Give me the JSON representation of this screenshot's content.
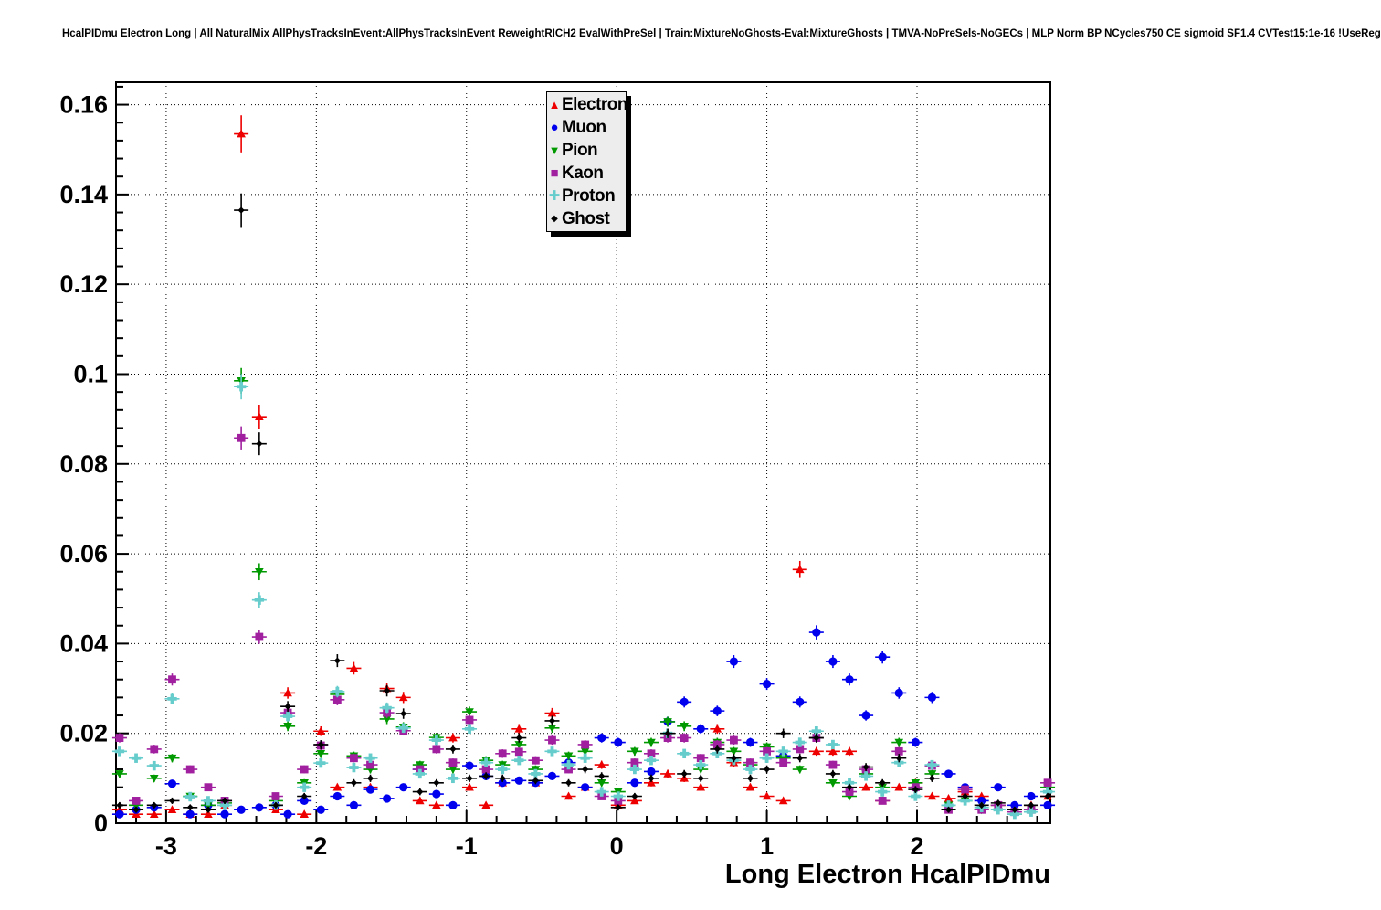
{
  "header": {
    "title": "HcalPIDmu Electron Long | All NaturalMix AllPhysTracksInEvent:AllPhysTracksInEvent ReweightRICH2 EvalWithPreSel | Train:MixtureNoGhosts-Eval:MixtureGhosts | TMVA-NoPreSels-NoGECs | MLP Norm BP NCycles750 CE sigmoid SF1.4 CVTest15:1e-16 !UseReg"
  },
  "chart_data": {
    "type": "scatter",
    "title": "HcalPIDmu Electron Long | All NaturalMix AllPhysTracksInEvent:AllPhysTracksInEvent ReweightRICH2 EvalWithPreSel | Train:MixtureNoGhosts-Eval:MixtureGhosts | TMVA-NoPreSels-NoGECs | MLP Norm BP NCycles750 CE sigmoid SF1.4 CVTest15:1e-16 !UseReg",
    "xlabel": "Long Electron HcalPIDmu",
    "ylabel": "",
    "xlim": [
      -3.334,
      2.888
    ],
    "ylim": [
      0,
      0.165
    ],
    "grid": true,
    "grid_style": "dotted",
    "legend_position": "top-center",
    "x_ticks": [
      {
        "v": -3,
        "label": "-3"
      },
      {
        "v": -2,
        "label": "-2"
      },
      {
        "v": -1,
        "label": "-1"
      },
      {
        "v": 0,
        "label": "0"
      },
      {
        "v": 1,
        "label": "1"
      },
      {
        "v": 2,
        "label": "2"
      }
    ],
    "y_ticks": [
      {
        "v": 0,
        "label": "0"
      },
      {
        "v": 0.02,
        "label": "0.02"
      },
      {
        "v": 0.04,
        "label": "0.04"
      },
      {
        "v": 0.06,
        "label": "0.06"
      },
      {
        "v": 0.08,
        "label": "0.08"
      },
      {
        "v": 0.1,
        "label": "0.1"
      },
      {
        "v": 0.12,
        "label": "0.12"
      },
      {
        "v": 0.14,
        "label": "0.14"
      },
      {
        "v": 0.16,
        "label": "0.16"
      }
    ],
    "x_minor_step": 0.2,
    "y_minor_step": 0.004,
    "x": [
      -3.31,
      -3.2,
      -3.08,
      -2.96,
      -2.84,
      -2.72,
      -2.61,
      -2.5,
      -2.38,
      -2.27,
      -2.19,
      -2.08,
      -1.97,
      -1.86,
      -1.75,
      -1.64,
      -1.53,
      -1.42,
      -1.31,
      -1.2,
      -1.09,
      -0.98,
      -0.87,
      -0.76,
      -0.65,
      -0.54,
      -0.43,
      -0.32,
      -0.21,
      -0.1,
      0.01,
      0.12,
      0.23,
      0.34,
      0.45,
      0.56,
      0.67,
      0.78,
      0.89,
      1.0,
      1.11,
      1.22,
      1.33,
      1.44,
      1.55,
      1.66,
      1.77,
      1.88,
      1.99,
      2.1,
      2.21,
      2.32,
      2.43,
      2.54,
      2.65,
      2.76,
      2.87
    ],
    "series": [
      {
        "name": "Electron",
        "color": "#ee0000",
        "marker": "triangle-up",
        "values": [
          0.003,
          0.002,
          0.002,
          0.003,
          0.002,
          0.002,
          0.004,
          0.1535,
          0.0905,
          0.003,
          0.029,
          0.002,
          0.0205,
          0.008,
          0.0345,
          0.008,
          0.03,
          0.028,
          0.005,
          0.004,
          0.019,
          0.008,
          0.004,
          0.009,
          0.021,
          0.009,
          0.0245,
          0.006,
          0.008,
          0.013,
          0.004,
          0.005,
          0.009,
          0.011,
          0.01,
          0.008,
          0.021,
          0.0135,
          0.008,
          0.006,
          0.005,
          0.0565,
          0.016,
          0.016,
          0.016,
          0.008,
          0.005,
          0.008,
          0.009,
          0.006,
          0.0055,
          0.007,
          0.006,
          0.004,
          0.003,
          0.004,
          0.006
        ]
      },
      {
        "name": "Muon",
        "color": "#0000ee",
        "marker": "circle",
        "values": [
          0.002,
          0.003,
          0.0035,
          0.0088,
          0.002,
          0.004,
          0.002,
          0.003,
          0.0035,
          0.004,
          0.002,
          0.005,
          0.003,
          0.006,
          0.004,
          0.0075,
          0.0055,
          0.008,
          0.012,
          0.0065,
          0.004,
          0.0128,
          0.0105,
          0.009,
          0.0095,
          0.009,
          0.0105,
          0.0135,
          0.008,
          0.019,
          0.018,
          0.009,
          0.0115,
          0.0226,
          0.027,
          0.021,
          0.025,
          0.036,
          0.018,
          0.031,
          0.015,
          0.027,
          0.0425,
          0.036,
          0.032,
          0.024,
          0.037,
          0.029,
          0.018,
          0.028,
          0.011,
          0.008,
          0.005,
          0.008,
          0.004,
          0.006,
          0.004
        ]
      },
      {
        "name": "Pion",
        "color": "#009900",
        "marker": "triangle-down",
        "values": [
          0.011,
          0.004,
          0.01,
          0.0145,
          0.006,
          0.004,
          0.0045,
          0.0985,
          0.056,
          0.005,
          0.0216,
          0.009,
          0.0155,
          0.0287,
          0.015,
          0.012,
          0.0232,
          0.0214,
          0.013,
          0.0191,
          0.012,
          0.0248,
          0.014,
          0.013,
          0.0175,
          0.012,
          0.0212,
          0.015,
          0.016,
          0.009,
          0.007,
          0.016,
          0.018,
          0.0226,
          0.0216,
          0.012,
          0.018,
          0.016,
          0.013,
          0.017,
          0.0145,
          0.012,
          0.019,
          0.009,
          0.006,
          0.011,
          0.008,
          0.018,
          0.009,
          0.011,
          0.004,
          0.005,
          0.003,
          0.004,
          0.002,
          0.003,
          0.008
        ]
      },
      {
        "name": "Kaon",
        "color": "#a020a0",
        "marker": "square",
        "values": [
          0.019,
          0.005,
          0.0165,
          0.032,
          0.012,
          0.008,
          0.005,
          0.0858,
          0.0415,
          0.006,
          0.0246,
          0.012,
          0.0173,
          0.0275,
          0.0145,
          0.013,
          0.0246,
          0.0206,
          0.012,
          0.0165,
          0.0135,
          0.023,
          0.012,
          0.0155,
          0.0159,
          0.014,
          0.0185,
          0.012,
          0.0175,
          0.006,
          0.005,
          0.0135,
          0.0155,
          0.019,
          0.019,
          0.0145,
          0.0175,
          0.0185,
          0.0135,
          0.016,
          0.0135,
          0.0165,
          0.019,
          0.013,
          0.007,
          0.012,
          0.005,
          0.016,
          0.008,
          0.0128,
          0.003,
          0.0075,
          0.003,
          0.004,
          0.0025,
          0.003,
          0.009
        ]
      },
      {
        "name": "Proton",
        "color": "#66cccc",
        "marker": "plus",
        "values": [
          0.016,
          0.0145,
          0.0128,
          0.0277,
          0.0059,
          0.005,
          0.004,
          0.0972,
          0.0497,
          0.004,
          0.0238,
          0.008,
          0.0134,
          0.0293,
          0.0124,
          0.0145,
          0.0257,
          0.0212,
          0.011,
          0.0185,
          0.01,
          0.021,
          0.0135,
          0.012,
          0.014,
          0.011,
          0.016,
          0.013,
          0.0145,
          0.007,
          0.006,
          0.012,
          0.014,
          0.02,
          0.0155,
          0.013,
          0.0155,
          0.014,
          0.012,
          0.0145,
          0.016,
          0.018,
          0.0205,
          0.0175,
          0.009,
          0.0105,
          0.007,
          0.0135,
          0.006,
          0.013,
          0.004,
          0.005,
          0.0035,
          0.003,
          0.002,
          0.0025,
          0.007
        ]
      },
      {
        "name": "Ghost",
        "color": "#000000",
        "marker": "diamond",
        "values": [
          0.004,
          0.003,
          0.004,
          0.005,
          0.0035,
          0.003,
          0.005,
          0.1365,
          0.0845,
          0.004,
          0.026,
          0.006,
          0.0175,
          0.0362,
          0.009,
          0.01,
          0.0295,
          0.0244,
          0.007,
          0.009,
          0.0165,
          0.01,
          0.0105,
          0.01,
          0.019,
          0.0095,
          0.0228,
          0.009,
          0.012,
          0.0105,
          0.0035,
          0.006,
          0.01,
          0.02,
          0.011,
          0.01,
          0.0165,
          0.0145,
          0.01,
          0.012,
          0.02,
          0.0145,
          0.019,
          0.011,
          0.008,
          0.0125,
          0.009,
          0.0145,
          0.0075,
          0.01,
          0.003,
          0.006,
          0.004,
          0.0045,
          0.003,
          0.004,
          0.006
        ]
      }
    ]
  }
}
